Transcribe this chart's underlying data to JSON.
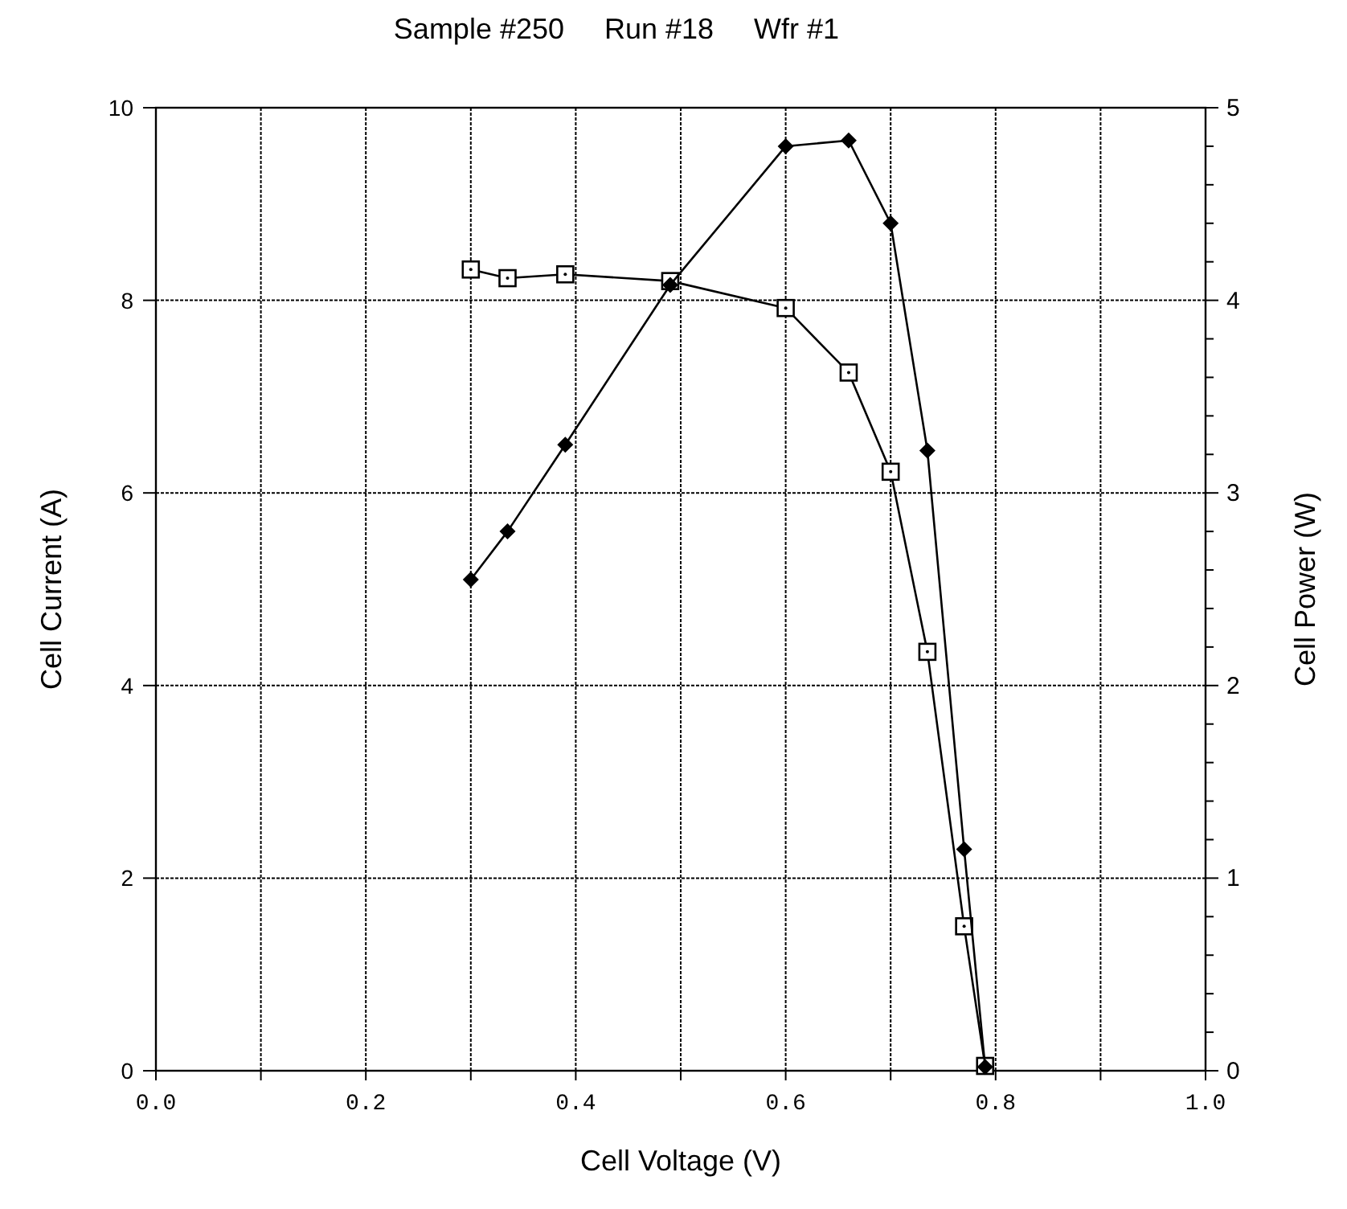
{
  "chart_data": {
    "type": "line",
    "title": "Sample #250     Run #18     Wfr #1",
    "xlabel": "Cell Voltage (V)",
    "ylabel": "Cell Current (A)",
    "y2label": "Cell Power (W)",
    "xlim": [
      0,
      1
    ],
    "xticks": [
      {
        "value": 0,
        "label": "0.0"
      },
      {
        "value": 0.1,
        "label": null
      },
      {
        "value": 0.2,
        "label": "0.2"
      },
      {
        "value": 0.3,
        "label": null
      },
      {
        "value": 0.4,
        "label": "0.4"
      },
      {
        "value": 0.5,
        "label": null
      },
      {
        "value": 0.6,
        "label": "0.6"
      },
      {
        "value": 0.7,
        "label": null
      },
      {
        "value": 0.8,
        "label": "0.8"
      },
      {
        "value": 0.9,
        "label": null
      },
      {
        "value": 1,
        "label": "1.0"
      }
    ],
    "ylim": [
      0,
      10
    ],
    "yticks": [
      0,
      2,
      4,
      6,
      8,
      10
    ],
    "y2lim": [
      0,
      5
    ],
    "y2ticks": [
      0,
      {
        "value": 0.2,
        "label": null
      },
      {
        "value": 0.4,
        "label": null
      },
      {
        "value": 0.6,
        "label": null
      },
      {
        "value": 0.8,
        "label": null
      },
      1,
      {
        "value": 1.2,
        "label": null
      },
      {
        "value": 1.4,
        "label": null
      },
      {
        "value": 1.6,
        "label": null
      },
      {
        "value": 1.8,
        "label": null
      },
      2,
      {
        "value": 2.2,
        "label": null
      },
      {
        "value": 2.4,
        "label": null
      },
      {
        "value": 2.6,
        "label": null
      },
      {
        "value": 2.8,
        "label": null
      },
      3,
      {
        "value": 3.2,
        "label": null
      },
      {
        "value": 3.4,
        "label": null
      },
      {
        "value": 3.6,
        "label": null
      },
      {
        "value": 3.8,
        "label": null
      },
      4,
      {
        "value": 4.2,
        "label": null
      },
      {
        "value": 4.4,
        "label": null
      },
      {
        "value": 4.6,
        "label": null
      },
      {
        "value": 4.8,
        "label": null
      },
      5
    ],
    "grid": true,
    "line_style": "solid",
    "series": [
      {
        "color": "#000000",
        "marker": "square",
        "x": [
          0.3,
          0.335,
          0.39,
          0.49,
          0.6,
          0.66,
          0.7,
          0.735,
          0.77,
          0.79
        ],
        "values": [
          8.32,
          8.23,
          8.27,
          8.2,
          7.92,
          7.25,
          6.22,
          4.35,
          1.5,
          0.05
        ]
      },
      {
        "color": "#000000",
        "marker": "diamond",
        "axis": "y2",
        "x": [
          0.3,
          0.335,
          0.39,
          0.49,
          0.6,
          0.66,
          0.7,
          0.735,
          0.77,
          0.79
        ],
        "values": [
          2.55,
          2.8,
          3.25,
          4.08,
          4.8,
          4.83,
          4.4,
          3.22,
          1.15,
          0.02
        ]
      }
    ]
  }
}
